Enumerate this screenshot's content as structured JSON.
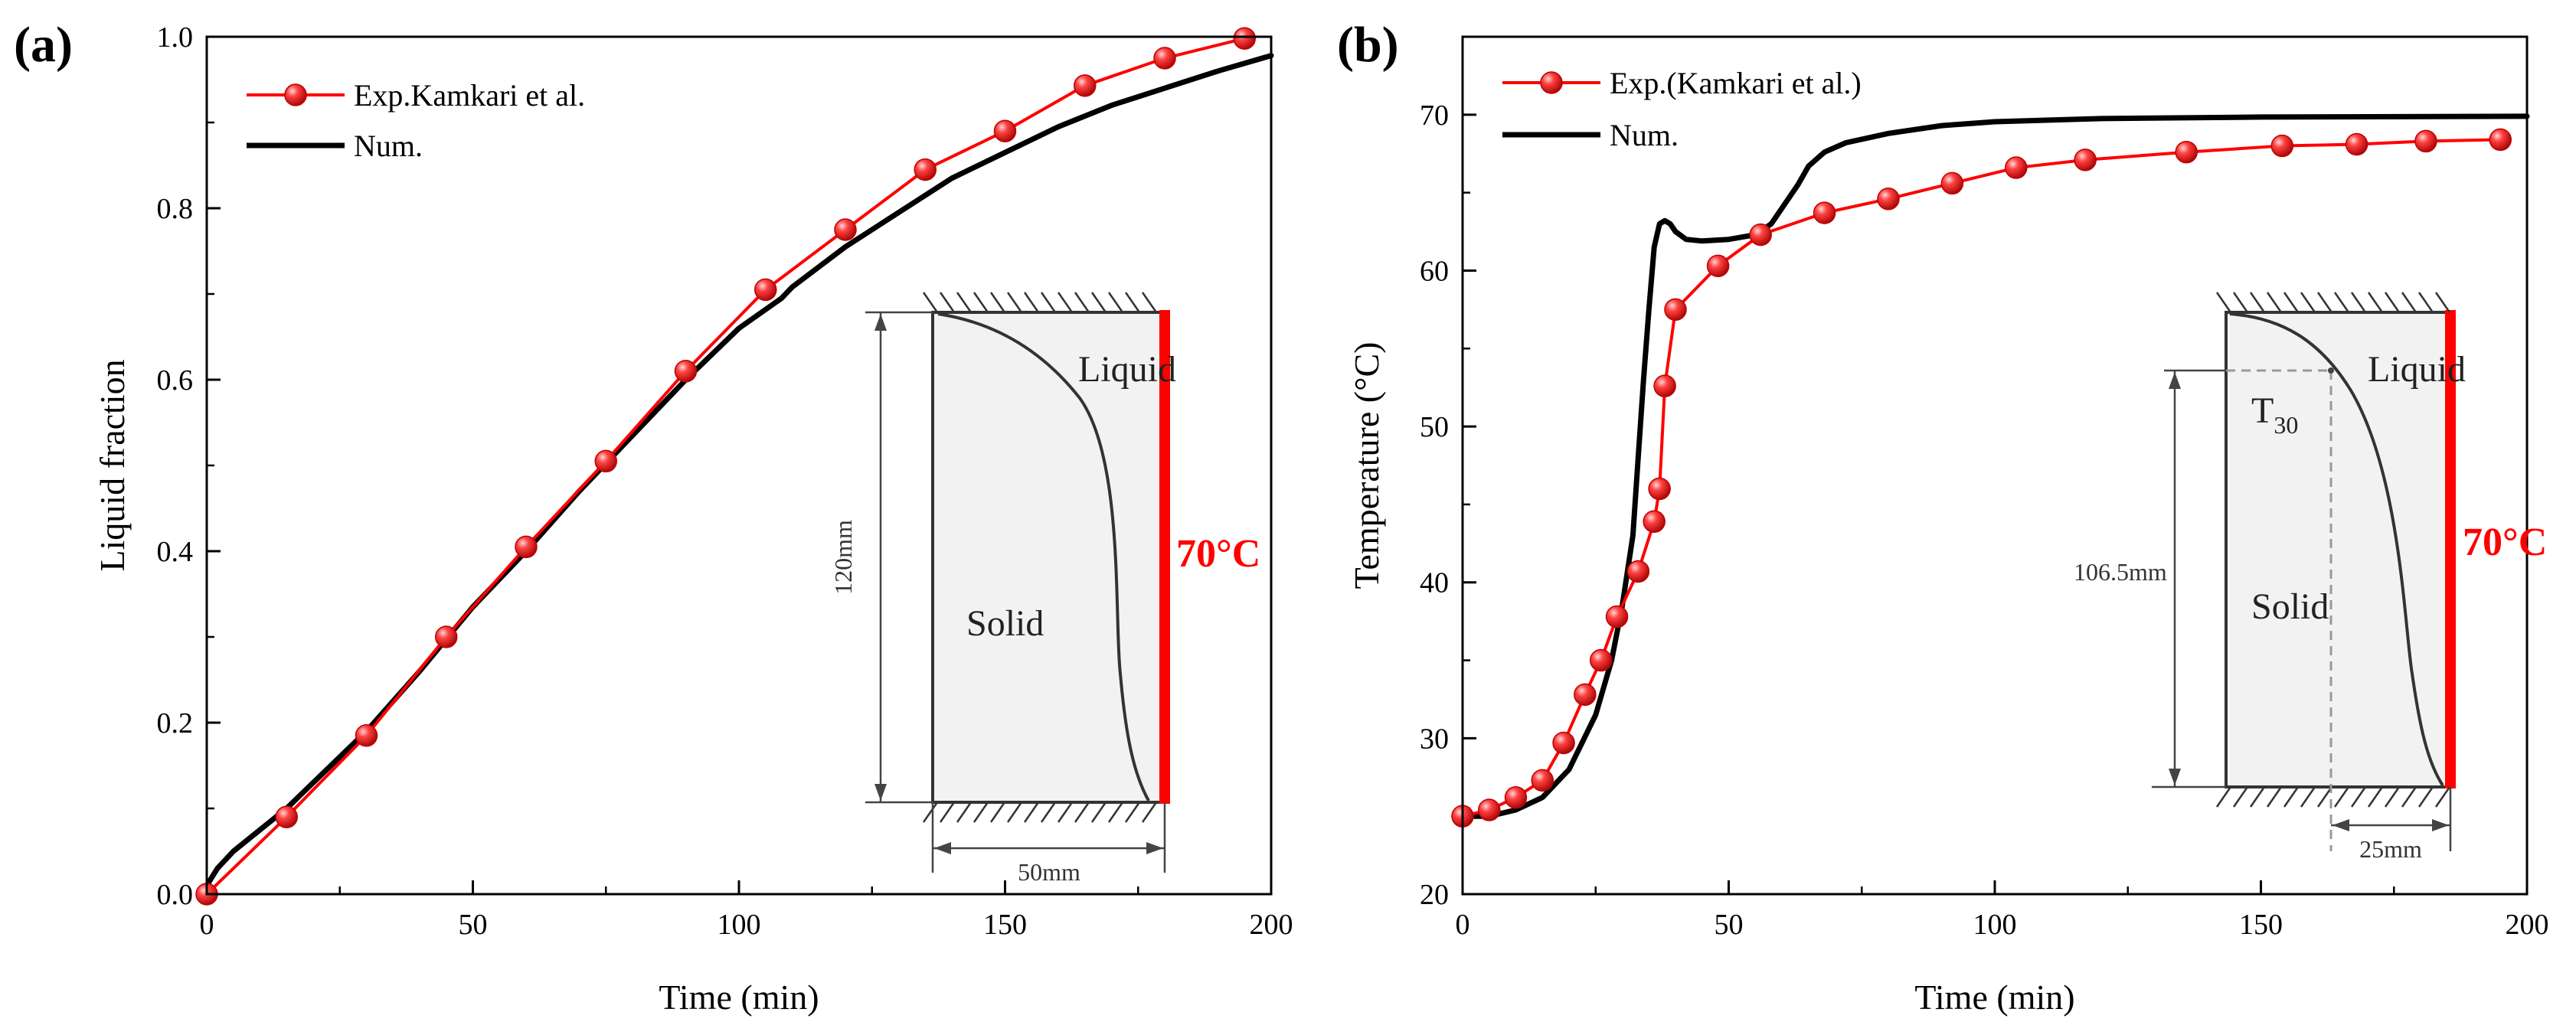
{
  "figure": {
    "panel_a_label": "(a)",
    "panel_b_label": "(b)"
  },
  "chart_data": [
    {
      "type": "line",
      "panel": "(a)",
      "xlabel": "Time (min)",
      "ylabel": "Liquid fraction",
      "xlim": [
        0,
        200
      ],
      "ylim": [
        0,
        1.0
      ],
      "xticks": [
        0,
        50,
        100,
        150,
        200
      ],
      "yticks": [
        0.0,
        0.2,
        0.4,
        0.6,
        0.8,
        1.0
      ],
      "xtick_labels": [
        "0",
        "50",
        "100",
        "150",
        "200"
      ],
      "ytick_labels": [
        "0.0",
        "0.2",
        "0.4",
        "0.6",
        "0.8",
        "1.0"
      ],
      "legend_position": "top-left",
      "series": [
        {
          "name": "Exp.Kamkari et al.",
          "color": "#ff0000",
          "marker": "sphere",
          "x": [
            0,
            15,
            30,
            45,
            60,
            75,
            90,
            105,
            120,
            135,
            150,
            165,
            180,
            195
          ],
          "y": [
            0.0,
            0.09,
            0.185,
            0.3,
            0.405,
            0.505,
            0.61,
            0.705,
            0.775,
            0.845,
            0.89,
            0.943,
            0.975,
            0.998
          ]
        },
        {
          "name": "Num.",
          "color": "#000000",
          "marker": "none",
          "x": [
            0,
            2,
            5,
            10,
            15,
            20,
            30,
            40,
            50,
            60,
            70,
            80,
            90,
            100,
            108,
            110,
            120,
            130,
            140,
            150,
            160,
            170,
            180,
            190,
            200
          ],
          "y": [
            0.01,
            0.03,
            0.05,
            0.075,
            0.1,
            0.13,
            0.19,
            0.26,
            0.335,
            0.4,
            0.47,
            0.535,
            0.6,
            0.66,
            0.695,
            0.708,
            0.755,
            0.795,
            0.835,
            0.865,
            0.895,
            0.92,
            0.94,
            0.96,
            0.978
          ]
        }
      ],
      "inset": {
        "liquid_label": "Liquid",
        "solid_label": "Solid",
        "wall_temp_label": "70°C",
        "height_label": "120mm",
        "width_label": "50mm"
      }
    },
    {
      "type": "line",
      "panel": "(b)",
      "xlabel": "Time (min)",
      "ylabel": "Temperature (°C)",
      "xlim": [
        0,
        200
      ],
      "ylim": [
        20,
        75
      ],
      "xticks": [
        0,
        50,
        100,
        150,
        200
      ],
      "yticks": [
        20,
        30,
        40,
        50,
        60,
        70
      ],
      "xtick_labels": [
        "0",
        "50",
        "100",
        "150",
        "200"
      ],
      "ytick_labels": [
        "20",
        "30",
        "40",
        "50",
        "60",
        "70"
      ],
      "legend_position": "top-left",
      "series": [
        {
          "name": "Exp.(Kamkari et al.)",
          "color": "#ff0000",
          "marker": "sphere",
          "x": [
            0,
            5,
            10,
            15,
            19,
            23,
            26,
            29,
            33,
            36,
            37,
            38,
            40,
            48,
            56,
            68,
            80,
            92,
            104,
            117,
            136,
            154,
            168,
            181,
            195
          ],
          "y": [
            25.0,
            25.4,
            26.2,
            27.3,
            29.7,
            32.8,
            35.0,
            37.8,
            40.7,
            43.9,
            46.0,
            52.6,
            57.5,
            60.3,
            62.3,
            63.7,
            64.6,
            65.6,
            66.6,
            67.1,
            67.6,
            68.0,
            68.1,
            68.3,
            68.4
          ]
        },
        {
          "name": "Num.",
          "color": "#000000",
          "marker": "none",
          "x": [
            0,
            5,
            10,
            15,
            20,
            25,
            28,
            30,
            32,
            33,
            34,
            35,
            36,
            37,
            38,
            39,
            40,
            42,
            45,
            50,
            55,
            58,
            60,
            63,
            65,
            68,
            72,
            80,
            90,
            100,
            120,
            150,
            200
          ],
          "y": [
            25.0,
            25.0,
            25.4,
            26.2,
            28.0,
            31.5,
            35.0,
            38.5,
            43.0,
            48.0,
            53.0,
            57.5,
            61.5,
            63.0,
            63.2,
            63.0,
            62.5,
            62.0,
            61.9,
            62.0,
            62.3,
            63.0,
            64.0,
            65.5,
            66.7,
            67.6,
            68.2,
            68.8,
            69.3,
            69.55,
            69.75,
            69.85,
            69.9
          ]
        }
      ],
      "inset": {
        "liquid_label": "Liquid",
        "solid_label": "Solid",
        "wall_temp_label": "70°C",
        "height_label": "106.5mm",
        "width_label": "25mm",
        "probe_label": "T",
        "probe_subscript": "30"
      }
    }
  ]
}
